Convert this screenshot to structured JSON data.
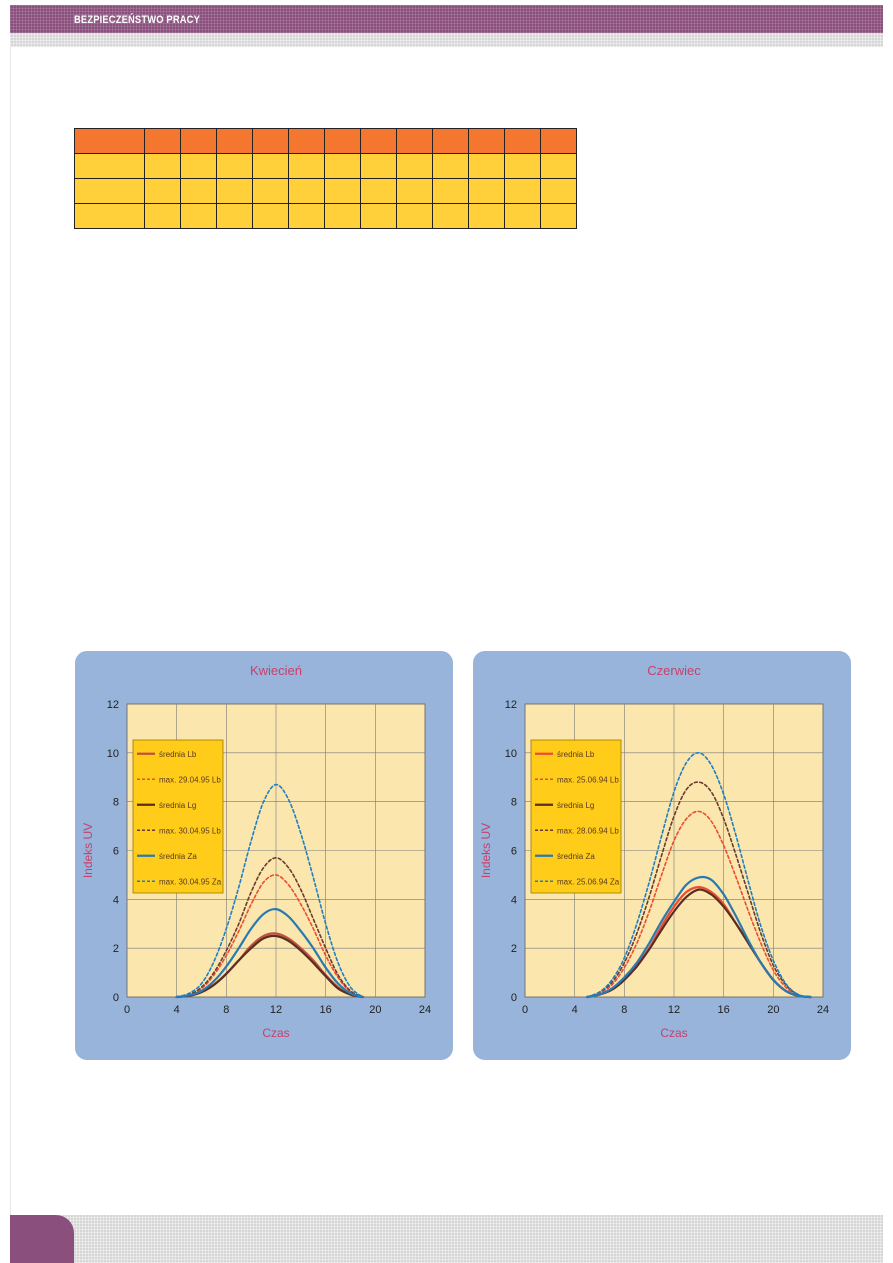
{
  "header": {
    "title": "BEZPIECZEŃSTWO PRACY"
  },
  "table": {
    "rows": [
      [
        "",
        "",
        "",
        "",
        "",
        "",
        "",
        "",
        "",
        "",
        "",
        "",
        ""
      ],
      [
        "",
        "",
        "",
        "",
        "",
        "",
        "",
        "",
        "",
        "",
        "",
        "",
        ""
      ],
      [
        "",
        "",
        "",
        "",
        "",
        "",
        "",
        "",
        "",
        "",
        "",
        "",
        ""
      ],
      [
        "",
        "",
        "",
        "",
        "",
        "",
        "",
        "",
        "",
        "",
        "",
        "",
        ""
      ]
    ]
  },
  "colors": {
    "header": "#8a4f7c",
    "table_header": "#f4762f",
    "table_rows": "#ffd03a",
    "panel": "#98b4da",
    "plot_bg": "#fbe6ad",
    "legend_bg": "#ffcc1a",
    "title_text": "#c8406c"
  },
  "chart_data": [
    {
      "type": "line",
      "title": "Kwiecień",
      "xlabel": "Czas",
      "ylabel": "Indeks UV",
      "xlim": [
        0,
        24
      ],
      "ylim": [
        0,
        12
      ],
      "xticks": [
        "0",
        "4",
        "8",
        "12",
        "16",
        "20",
        "24"
      ],
      "yticks": [
        "0",
        "2",
        "4",
        "6",
        "8",
        "10",
        "12"
      ],
      "grid": true,
      "legend_position": "top-left",
      "x": [
        4,
        5,
        6,
        7,
        8,
        9,
        10,
        11,
        12,
        13,
        14,
        15,
        16,
        17,
        18,
        19
      ],
      "series": [
        {
          "name": "średnia Lb",
          "color": "#c0503c",
          "dash": false,
          "values": [
            0,
            0.05,
            0.2,
            0.5,
            0.95,
            1.5,
            2.1,
            2.5,
            2.6,
            2.4,
            2.0,
            1.5,
            0.9,
            0.4,
            0.1,
            0
          ]
        },
        {
          "name": "max. 29.04.95 Lb",
          "color": "#ee4c30",
          "dash": true,
          "values": [
            0,
            0.1,
            0.35,
            0.9,
            1.7,
            2.7,
            3.8,
            4.7,
            5.0,
            4.6,
            3.8,
            2.8,
            1.7,
            0.8,
            0.2,
            0
          ]
        },
        {
          "name": "średnia Lg",
          "color": "#5a2e24",
          "dash": false,
          "values": [
            0,
            0.05,
            0.2,
            0.5,
            0.95,
            1.5,
            2.0,
            2.4,
            2.5,
            2.3,
            1.9,
            1.4,
            0.85,
            0.35,
            0.1,
            0
          ]
        },
        {
          "name": "max. 30.04.95 Lb",
          "color": "#6a3b30",
          "dash": true,
          "values": [
            0,
            0.1,
            0.4,
            1.0,
            1.9,
            3.0,
            4.3,
            5.3,
            5.7,
            5.3,
            4.4,
            3.2,
            2.0,
            0.9,
            0.25,
            0
          ]
        },
        {
          "name": "średnia Za",
          "color": "#2a7ab0",
          "dash": false,
          "values": [
            0,
            0.07,
            0.25,
            0.65,
            1.25,
            2.0,
            2.8,
            3.4,
            3.6,
            3.3,
            2.7,
            2.0,
            1.2,
            0.55,
            0.15,
            0
          ]
        },
        {
          "name": "max. 30.04.95 Za",
          "color": "#1f7fc4",
          "dash": true,
          "values": [
            0,
            0.15,
            0.55,
            1.45,
            2.8,
            4.5,
            6.4,
            8.0,
            8.7,
            8.1,
            6.7,
            4.9,
            3.0,
            1.4,
            0.4,
            0
          ]
        }
      ]
    },
    {
      "type": "line",
      "title": "Czerwiec",
      "xlabel": "Czas",
      "ylabel": "Indeks UV",
      "xlim": [
        0,
        24
      ],
      "ylim": [
        0,
        12
      ],
      "xticks": [
        "0",
        "4",
        "8",
        "12",
        "16",
        "20",
        "24"
      ],
      "yticks": [
        "0",
        "2",
        "4",
        "6",
        "8",
        "10",
        "12"
      ],
      "grid": true,
      "legend_position": "top-left",
      "x": [
        5,
        6,
        7,
        8,
        9,
        10,
        11,
        12,
        13,
        14,
        15,
        16,
        17,
        18,
        19,
        20,
        21,
        22,
        23
      ],
      "series": [
        {
          "name": "średnia Lb",
          "color": "#ee4c30",
          "dash": false,
          "values": [
            0,
            0.1,
            0.3,
            0.7,
            1.3,
            2.0,
            2.9,
            3.7,
            4.3,
            4.5,
            4.3,
            3.8,
            3.0,
            2.2,
            1.4,
            0.7,
            0.25,
            0.05,
            0
          ]
        },
        {
          "name": "max. 25.06.94 Lb",
          "color": "#ee4c30",
          "dash": true,
          "values": [
            0,
            0.15,
            0.5,
            1.2,
            2.2,
            3.5,
            5.0,
            6.4,
            7.3,
            7.6,
            7.2,
            6.2,
            4.9,
            3.5,
            2.2,
            1.1,
            0.4,
            0.08,
            0
          ]
        },
        {
          "name": "średnia Lg",
          "color": "#5a2e24",
          "dash": false,
          "values": [
            0,
            0.1,
            0.3,
            0.7,
            1.25,
            1.95,
            2.75,
            3.5,
            4.1,
            4.4,
            4.2,
            3.7,
            3.0,
            2.2,
            1.4,
            0.7,
            0.25,
            0.05,
            0
          ]
        },
        {
          "name": "max. 28.06.94 Lb",
          "color": "#6a3b30",
          "dash": true,
          "values": [
            0,
            0.2,
            0.6,
            1.4,
            2.6,
            4.1,
            5.8,
            7.4,
            8.5,
            8.8,
            8.4,
            7.3,
            5.8,
            4.2,
            2.6,
            1.3,
            0.5,
            0.1,
            0
          ]
        },
        {
          "name": "średnia Za",
          "color": "#2a7ab0",
          "dash": false,
          "values": [
            0,
            0.1,
            0.35,
            0.8,
            1.4,
            2.2,
            3.1,
            3.9,
            4.6,
            4.9,
            4.8,
            4.2,
            3.3,
            2.3,
            1.4,
            0.7,
            0.25,
            0.05,
            0
          ]
        },
        {
          "name": "max. 25.06.94 Za",
          "color": "#1f7fc4",
          "dash": true,
          "values": [
            0,
            0.2,
            0.7,
            1.6,
            3.0,
            4.7,
            6.6,
            8.4,
            9.6,
            10.0,
            9.5,
            8.3,
            6.6,
            4.7,
            2.9,
            1.5,
            0.55,
            0.1,
            0
          ]
        }
      ]
    }
  ]
}
